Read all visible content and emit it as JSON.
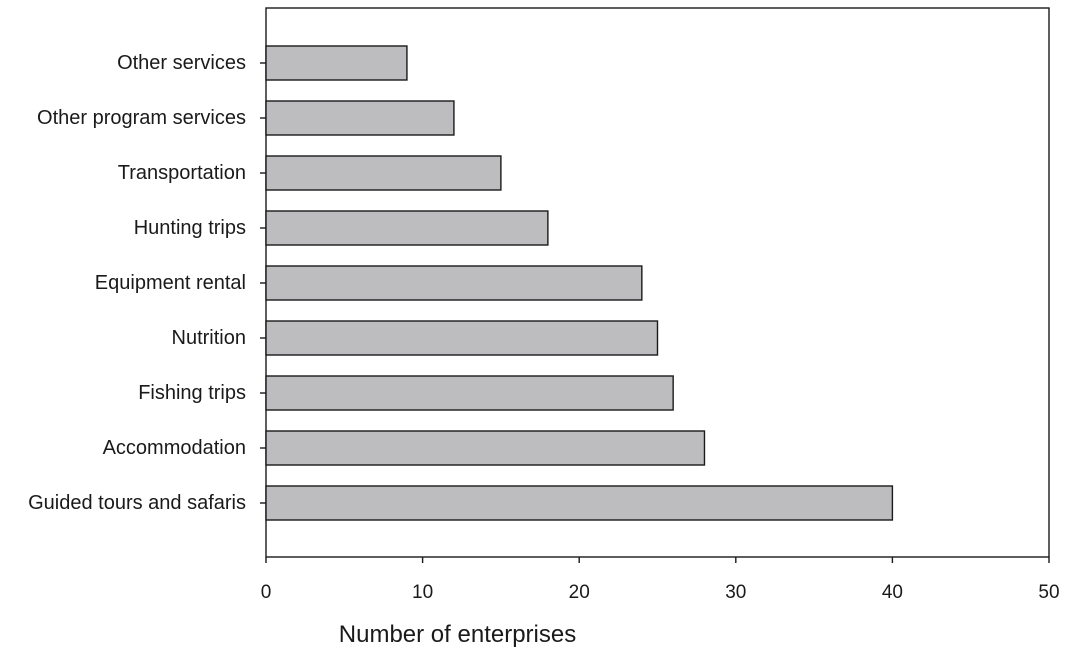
{
  "colors": {
    "bar_fill": "#bdbdc0",
    "bar_stroke": "#1a1a1a",
    "axis": "#1a1a1a",
    "text": "#1a1a1a"
  },
  "chart_data": {
    "type": "bar",
    "orientation": "horizontal",
    "categories": [
      "Other services",
      "Other program services",
      "Transportation",
      "Hunting trips",
      "Equipment rental",
      "Nutrition",
      "Fishing trips",
      "Accommodation",
      "Guided tours and safaris"
    ],
    "values": [
      9,
      12,
      15,
      18,
      24,
      25,
      26,
      28,
      40
    ],
    "title": "",
    "xlabel": "Number of enterprises",
    "ylabel": "",
    "xlim": [
      0,
      50
    ],
    "xticks": [
      0,
      10,
      20,
      30,
      40,
      50
    ],
    "grid": false,
    "legend": "none"
  }
}
